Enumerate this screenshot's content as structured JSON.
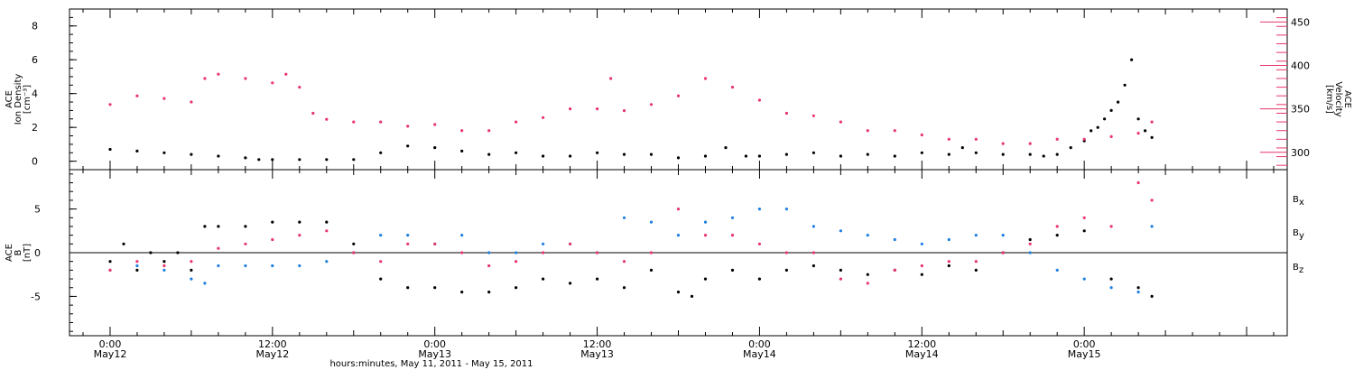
{
  "colors": {
    "black": "#000000",
    "pink": "#e8356a",
    "blue": "#1f7fe0"
  },
  "chart_data": [
    {
      "type": "scatter",
      "panel": "top",
      "left_axis": {
        "label_lines": [
          "ACE",
          "Ion Density",
          "[cm⁻³]"
        ],
        "ylim": [
          -0.5,
          9
        ],
        "ticks": [
          "0",
          "2",
          "4",
          "6",
          "8"
        ]
      },
      "right_axis": {
        "label_lines": [
          "ACE",
          "Velocity",
          "[km/s]"
        ],
        "ylim": [
          280,
          465
        ],
        "ticks": [
          "300",
          "350",
          "400",
          "450"
        ]
      },
      "series": [
        {
          "color": "#000000",
          "axis": "left",
          "x": [
            0,
            2,
            4,
            6,
            8,
            10,
            11,
            12,
            14,
            16,
            18,
            20,
            22,
            24,
            26,
            28,
            30,
            32,
            34,
            36,
            38,
            40,
            42,
            44,
            45.5,
            47,
            48,
            50,
            52,
            54,
            56,
            58,
            60,
            62,
            63,
            64,
            66,
            68,
            69,
            70,
            71,
            72,
            72.5,
            73,
            73.5,
            74,
            74.5,
            75,
            75.5,
            76,
            76.5,
            77
          ],
          "y": [
            0.7,
            0.6,
            0.5,
            0.4,
            0.3,
            0.2,
            0.1,
            0.1,
            0.1,
            0.1,
            0.1,
            0.5,
            0.9,
            0.8,
            0.6,
            0.4,
            0.5,
            0.3,
            0.3,
            0.5,
            0.4,
            0.4,
            0.2,
            0.3,
            0.8,
            0.3,
            0.3,
            0.4,
            0.5,
            0.3,
            0.4,
            0.3,
            0.5,
            0.4,
            0.8,
            0.5,
            0.4,
            0.4,
            0.3,
            0.4,
            0.8,
            1.2,
            1.8,
            2.0,
            2.5,
            3.0,
            3.5,
            4.5,
            6.0,
            2.5,
            1.8,
            1.4
          ]
        },
        {
          "color": "#e8356a",
          "axis": "right",
          "x": [
            0,
            2,
            4,
            6,
            7,
            8,
            10,
            12,
            13,
            14,
            15,
            16,
            18,
            20,
            22,
            24,
            26,
            28,
            30,
            32,
            34,
            36,
            37,
            38,
            40,
            42,
            44,
            46,
            48,
            50,
            52,
            54,
            56,
            58,
            60,
            62,
            64,
            66,
            68,
            70,
            72,
            74,
            76,
            77
          ],
          "y": [
            355,
            365,
            362,
            358,
            385,
            390,
            385,
            380,
            390,
            375,
            345,
            338,
            335,
            335,
            330,
            332,
            325,
            325,
            335,
            340,
            350,
            350,
            385,
            348,
            355,
            365,
            385,
            375,
            360,
            345,
            342,
            335,
            325,
            325,
            320,
            315,
            315,
            310,
            310,
            315,
            315,
            318,
            322,
            335
          ]
        }
      ]
    },
    {
      "type": "scatter",
      "panel": "bottom",
      "left_axis": {
        "label_lines": [
          "ACE",
          "B",
          "[nT]"
        ],
        "ylim": [
          -9.5,
          9.5
        ],
        "ticks": [
          "-5",
          "0",
          "5"
        ]
      },
      "legend": [
        {
          "label": "B",
          "sub": "x",
          "color": "#000000"
        },
        {
          "label": "B",
          "sub": "y",
          "color": "#1f7fe0"
        },
        {
          "label": "B",
          "sub": "z",
          "color": "#e8356a"
        }
      ],
      "series": [
        {
          "name": "Bx",
          "color": "#000000",
          "x": [
            0,
            1,
            2,
            3,
            4,
            5,
            6,
            7,
            8,
            10,
            12,
            14,
            16,
            18,
            20,
            22,
            24,
            26,
            28,
            30,
            32,
            34,
            36,
            38,
            40,
            42,
            43,
            44,
            46,
            48,
            50,
            52,
            54,
            56,
            58,
            60,
            62,
            64,
            66,
            68,
            70,
            72,
            74,
            76,
            77
          ],
          "y": [
            -1,
            1,
            -2,
            0,
            -1,
            0,
            -2,
            3,
            3,
            3,
            3.5,
            3.5,
            3.5,
            1,
            -3,
            -4,
            -4,
            -4.5,
            -4.5,
            -4,
            -3,
            -3.5,
            -3,
            -4,
            -2,
            -4.5,
            -5,
            -3,
            -2,
            -3,
            -2,
            -1.5,
            -2,
            -2.5,
            -2,
            -2.5,
            -1.5,
            -2,
            0,
            1.5,
            2,
            2.5,
            -3,
            -4,
            -5
          ]
        },
        {
          "name": "By",
          "color": "#1f7fe0",
          "x": [
            0,
            2,
            4,
            6,
            7,
            8,
            10,
            12,
            14,
            16,
            18,
            20,
            22,
            24,
            26,
            28,
            30,
            32,
            34,
            36,
            38,
            40,
            42,
            44,
            46,
            48,
            50,
            52,
            54,
            56,
            58,
            60,
            62,
            64,
            66,
            68,
            70,
            72,
            74,
            76,
            77
          ],
          "y": [
            -2,
            -1.5,
            -2,
            -3,
            -3.5,
            -1.5,
            -1.5,
            -1.5,
            -1.5,
            -1,
            0,
            2,
            2,
            1,
            2,
            0,
            0,
            1,
            1,
            0,
            4,
            3.5,
            2,
            3.5,
            4,
            5,
            5,
            3,
            2.5,
            2,
            1.5,
            1,
            1.5,
            2,
            2,
            0,
            -2,
            -3,
            -4,
            -4.5,
            3
          ]
        },
        {
          "name": "Bz",
          "color": "#e8356a",
          "x": [
            0,
            2,
            4,
            6,
            8,
            10,
            12,
            14,
            16,
            18,
            20,
            22,
            24,
            26,
            28,
            30,
            32,
            34,
            36,
            38,
            40,
            42,
            44,
            46,
            48,
            50,
            52,
            54,
            56,
            58,
            60,
            62,
            64,
            66,
            68,
            70,
            72,
            74,
            76,
            77
          ],
          "y": [
            -2,
            -1,
            -1.5,
            -1,
            0.5,
            1,
            1.5,
            2,
            2.5,
            0,
            -1,
            1,
            1,
            0,
            -1.5,
            -1,
            0,
            1,
            0,
            -1,
            0,
            5,
            2,
            2,
            1,
            0,
            0,
            -3,
            -3.5,
            -2,
            -1.5,
            -1,
            -1,
            0,
            1,
            3,
            4,
            3,
            8,
            6
          ]
        }
      ]
    }
  ],
  "xaxis": {
    "range_hours": [
      -3,
      87
    ],
    "ticks": [
      {
        "h": 0,
        "l1": "0:00",
        "l2": "May12"
      },
      {
        "h": 12,
        "l1": "12:00",
        "l2": "May12"
      },
      {
        "h": 24,
        "l1": "0:00",
        "l2": "May13"
      },
      {
        "h": 36,
        "l1": "12:00",
        "l2": "May13"
      },
      {
        "h": 48,
        "l1": "0:00",
        "l2": "May14"
      },
      {
        "h": 60,
        "l1": "12:00",
        "l2": "May14"
      },
      {
        "h": 72,
        "l1": "0:00",
        "l2": "May15"
      }
    ],
    "title": "hours:minutes, May 11, 2011 - May 15, 2011"
  }
}
